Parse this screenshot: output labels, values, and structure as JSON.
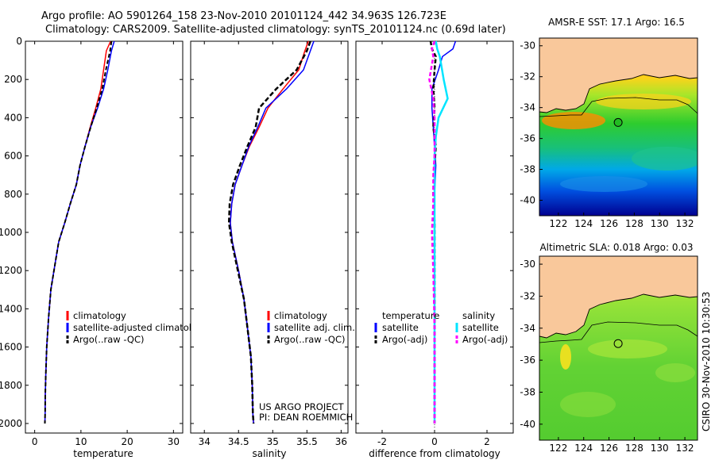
{
  "header": {
    "line1": "Argo profile: AO 5901264_158 23-Nov-2010 20101124_442 34.963S 126.723E",
    "line2": "Climatology: CARS2009. Satellite-adjusted climatology: synTS_20101124.nc (0.69d later)"
  },
  "footer_vertical": "CSIRO 30-Nov-2010 10:30:53",
  "colors": {
    "climatology": "#ff0000",
    "satellite": "#0000ff",
    "argo": "#000000",
    "salinity_satellite": "#00e5ff",
    "salinity_argo": "#ff00ff",
    "land": "#f9c89b"
  },
  "chart_data": [
    {
      "type": "line",
      "xlabel": "temperature",
      "x_ticks": [
        "0",
        "10",
        "20",
        "30"
      ],
      "y_ticks": [
        "0",
        "200",
        "400",
        "600",
        "800",
        "1000",
        "1200",
        "1400",
        "1600",
        "1800",
        "2000"
      ],
      "xlim": [
        -2,
        32
      ],
      "ylim": [
        2050,
        0
      ],
      "legend": [
        "climatology",
        "satellite-adjusted climatology",
        "Argo(..raw -QC)"
      ],
      "series": [
        {
          "name": "climatology",
          "x": [
            16.4,
            15.5,
            14.9,
            14.3,
            13.2,
            12.0,
            10.9,
            9.8,
            9.0,
            7.7,
            6.5,
            5.2,
            4.5,
            3.5,
            3.0,
            2.6,
            2.4,
            2.3,
            2.25,
            2.2
          ],
          "y": [
            0,
            50,
            150,
            250,
            350,
            450,
            550,
            650,
            750,
            850,
            950,
            1050,
            1150,
            1300,
            1450,
            1600,
            1750,
            1850,
            1950,
            2000
          ]
        },
        {
          "name": "satellite-adjusted climatology",
          "x": [
            17.2,
            16.6,
            15.8,
            14.9,
            13.6,
            12.1,
            10.9,
            9.8,
            9.0,
            7.7,
            6.5,
            5.2,
            4.5,
            3.5,
            3.0,
            2.6,
            2.4,
            2.3,
            2.25,
            2.2
          ],
          "y": [
            0,
            50,
            150,
            250,
            350,
            450,
            550,
            650,
            750,
            850,
            950,
            1050,
            1150,
            1300,
            1450,
            1600,
            1750,
            1850,
            1950,
            2000
          ]
        },
        {
          "name": "Argo(..raw -QC)",
          "x": [
            16.6,
            16.3,
            15.4,
            14.6,
            13.4,
            12.1,
            10.9,
            9.8,
            9.0,
            7.7,
            6.5,
            5.2,
            4.5,
            3.5,
            3.0,
            2.6,
            2.4,
            2.3,
            2.25,
            2.2
          ],
          "y": [
            0,
            50,
            150,
            250,
            350,
            450,
            550,
            650,
            750,
            850,
            950,
            1050,
            1150,
            1300,
            1450,
            1600,
            1750,
            1850,
            1950,
            2000
          ]
        }
      ]
    },
    {
      "type": "line",
      "xlabel": "salinity",
      "x_ticks": [
        "34",
        "34.5",
        "35",
        "35.5",
        "36"
      ],
      "xlim": [
        33.8,
        36.1
      ],
      "ylim": [
        2050,
        0
      ],
      "legend": [
        "climatology",
        "satellite adj. clim.",
        "Argo(..raw -QC)"
      ],
      "series": [
        {
          "name": "climatology",
          "x": [
            35.52,
            35.47,
            35.38,
            35.15,
            34.93,
            34.8,
            34.66,
            34.55,
            34.45,
            34.4,
            34.38,
            34.41,
            34.5,
            34.58,
            34.63,
            34.68,
            34.7,
            34.71,
            34.72
          ],
          "y": [
            0,
            50,
            150,
            250,
            350,
            450,
            550,
            650,
            750,
            850,
            950,
            1050,
            1200,
            1350,
            1500,
            1650,
            1800,
            1950,
            2000
          ]
        },
        {
          "name": "satellite adj. clim.",
          "x": [
            35.6,
            35.55,
            35.45,
            35.2,
            34.9,
            34.78,
            34.65,
            34.55,
            34.45,
            34.4,
            34.38,
            34.41,
            34.5,
            34.58,
            34.63,
            34.68,
            34.7,
            34.71,
            34.72
          ],
          "y": [
            0,
            50,
            150,
            250,
            350,
            450,
            550,
            650,
            750,
            850,
            950,
            1050,
            1200,
            1350,
            1500,
            1650,
            1800,
            1950,
            2000
          ]
        },
        {
          "name": "Argo(..raw -QC)",
          "x": [
            35.55,
            35.5,
            35.35,
            35.05,
            34.8,
            34.75,
            34.63,
            34.52,
            34.42,
            34.37,
            34.36,
            34.4,
            34.49,
            34.58,
            34.63,
            34.68,
            34.7,
            34.71,
            34.72
          ],
          "y": [
            0,
            50,
            150,
            250,
            350,
            450,
            550,
            650,
            750,
            850,
            950,
            1050,
            1200,
            1350,
            1500,
            1650,
            1800,
            1950,
            2000
          ]
        }
      ],
      "annotation": [
        "US ARGO PROJECT",
        "PI: DEAN ROEMMICH"
      ]
    },
    {
      "type": "line",
      "xlabel": "difference from climatology",
      "x_ticks": [
        "-2",
        "0",
        "2"
      ],
      "xlim": [
        -3,
        3
      ],
      "ylim": [
        2050,
        0
      ],
      "legend_temperature": [
        "temperature",
        "satellite",
        "Argo(-adj)"
      ],
      "legend_salinity": [
        "salinity",
        "satellite",
        "Argo(-adj)"
      ],
      "series": [
        {
          "name": "temperature satellite",
          "x": [
            0.8,
            0.7,
            0.3,
            0.15,
            -0.1,
            -0.1,
            -0.05,
            0.0,
            0.05,
            0.0,
            0.0,
            0.0,
            0.0,
            0.0,
            0.0
          ],
          "y": [
            0,
            40,
            80,
            150,
            250,
            350,
            450,
            550,
            650,
            800,
            950,
            1200,
            1500,
            1800,
            2000
          ]
        },
        {
          "name": "temperature Argo(-adj)",
          "x": [
            -0.15,
            -0.1,
            0.05,
            0.0,
            -0.05,
            0.0,
            -0.05,
            0.05,
            0.0,
            -0.05,
            0.0,
            0.0,
            0.0,
            0.0,
            0.0
          ],
          "y": [
            0,
            40,
            80,
            150,
            250,
            350,
            450,
            550,
            650,
            800,
            950,
            1200,
            1500,
            1800,
            2000
          ]
        },
        {
          "name": "salinity satellite",
          "x": [
            0.05,
            0.1,
            0.2,
            0.35,
            0.5,
            0.15,
            0.05,
            0.0,
            0.0,
            0.0,
            0.0,
            0.0,
            0.0,
            0.0,
            0.0
          ],
          "y": [
            0,
            40,
            80,
            200,
            300,
            400,
            500,
            600,
            700,
            850,
            1000,
            1200,
            1500,
            1800,
            2000
          ]
        },
        {
          "name": "salinity Argo(-adj)",
          "x": [
            0.0,
            -0.1,
            -0.05,
            -0.2,
            -0.05,
            0.0,
            0.0,
            0.0,
            -0.05,
            -0.05,
            -0.1,
            -0.05,
            0.0,
            0.0,
            0.0
          ],
          "y": [
            0,
            40,
            80,
            200,
            300,
            400,
            500,
            600,
            700,
            850,
            1000,
            1200,
            1500,
            1800,
            2000
          ]
        }
      ]
    },
    {
      "type": "heatmap",
      "title": "AMSR-E SST: 17.1 Argo: 16.5",
      "x_ticks": [
        "122",
        "124",
        "126",
        "128",
        "130",
        "132"
      ],
      "y_ticks": [
        "-30",
        "-32",
        "-34",
        "-36",
        "-38",
        "-40"
      ],
      "xlim": [
        120.5,
        133
      ],
      "ylim": [
        -41,
        -29.5
      ],
      "marker": {
        "lon": 126.723,
        "lat": -34.963
      }
    },
    {
      "type": "heatmap",
      "title": "Altimetric SLA: 0.018 Argo: 0.03",
      "x_ticks": [
        "122",
        "124",
        "126",
        "128",
        "130",
        "132"
      ],
      "y_ticks": [
        "-30",
        "-32",
        "-34",
        "-36",
        "-38",
        "-40"
      ],
      "xlim": [
        120.5,
        133
      ],
      "ylim": [
        -41,
        -29.5
      ],
      "marker": {
        "lon": 126.723,
        "lat": -34.963
      }
    }
  ]
}
